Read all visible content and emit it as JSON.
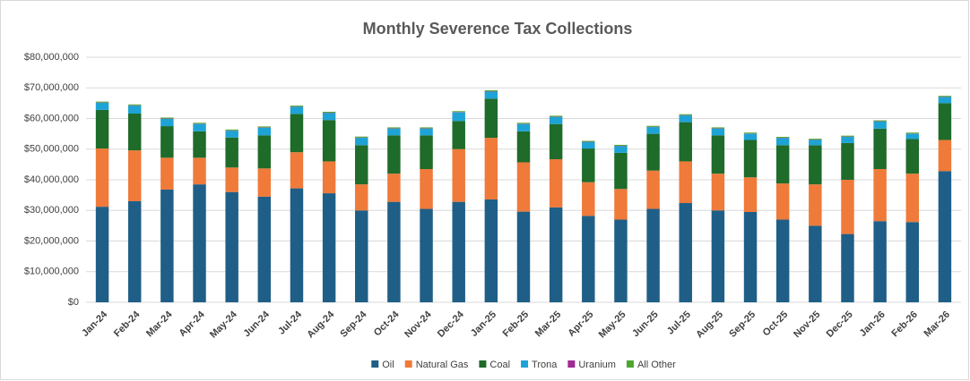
{
  "chart_data": {
    "type": "stacked_bar",
    "title": "Monthly Severence Tax Collections",
    "categories": [
      "Jan-24",
      "Feb-24",
      "Mar-24",
      "Apr-24",
      "May-24",
      "Jun-24",
      "Jul-24",
      "Aug-24",
      "Sep-24",
      "Oct-24",
      "Nov-24",
      "Dec-24",
      "Jan-25",
      "Feb-25",
      "Mar-25",
      "Apr-25",
      "May-25",
      "Jun-25",
      "Jul-25",
      "Aug-25",
      "Sep-25",
      "Oct-25",
      "Nov-25",
      "Dec-25",
      "Jan-26",
      "Feb-26",
      "Mar-26"
    ],
    "series": [
      {
        "name": "Oil",
        "color": "#1f5f87",
        "values": [
          31200000,
          33000000,
          36800000,
          38500000,
          36000000,
          34500000,
          37200000,
          35600000,
          30000000,
          32800000,
          30500000,
          32800000,
          33600000,
          29600000,
          31000000,
          28200000,
          27000000,
          30500000,
          32400000,
          30000000,
          29500000,
          27000000,
          25000000,
          22300000,
          26500000,
          26200000,
          42800000
        ]
      },
      {
        "name": "Natural Gas",
        "color": "#ef7a3a",
        "values": [
          19000000,
          16600000,
          10400000,
          8700000,
          8000000,
          9200000,
          11800000,
          10400000,
          8500000,
          9200000,
          13000000,
          17200000,
          20100000,
          16100000,
          15700000,
          11000000,
          10000000,
          12500000,
          13600000,
          12000000,
          11300000,
          11800000,
          13500000,
          17700000,
          17000000,
          15800000,
          10200000
        ]
      },
      {
        "name": "Coal",
        "color": "#1e6b2a",
        "values": [
          12600000,
          12000000,
          10300000,
          8600000,
          9800000,
          10800000,
          12500000,
          13500000,
          12800000,
          12500000,
          11000000,
          9200000,
          12800000,
          10100000,
          11500000,
          11000000,
          11800000,
          12000000,
          12800000,
          12500000,
          12200000,
          12500000,
          12800000,
          12000000,
          13200000,
          11300000,
          12000000
        ]
      },
      {
        "name": "Trona",
        "color": "#1ea3d6",
        "values": [
          2300000,
          2600000,
          2400000,
          2400000,
          2200000,
          2500000,
          2300000,
          2300000,
          2400000,
          2200000,
          2200000,
          2800000,
          2300000,
          2400000,
          2300000,
          2100000,
          2200000,
          2200000,
          2200000,
          2200000,
          2000000,
          2300000,
          1700000,
          2000000,
          2300000,
          1700000,
          2000000
        ]
      },
      {
        "name": "Uranium",
        "color": "#a02b93",
        "values": [
          100000,
          100000,
          100000,
          100000,
          100000,
          100000,
          100000,
          100000,
          100000,
          100000,
          100000,
          100000,
          100000,
          100000,
          100000,
          100000,
          100000,
          100000,
          100000,
          100000,
          100000,
          100000,
          100000,
          100000,
          100000,
          100000,
          100000
        ]
      },
      {
        "name": "All Other",
        "color": "#4ea72e",
        "values": [
          300000,
          300000,
          300000,
          300000,
          300000,
          300000,
          300000,
          300000,
          300000,
          300000,
          300000,
          300000,
          300000,
          300000,
          300000,
          300000,
          300000,
          300000,
          300000,
          300000,
          300000,
          300000,
          300000,
          300000,
          300000,
          300000,
          300000
        ]
      }
    ],
    "ylim": [
      0,
      80000000
    ],
    "yticks": [
      {
        "value": 0,
        "label": "$0"
      },
      {
        "value": 10000000,
        "label": "$10,000,000"
      },
      {
        "value": 20000000,
        "label": "$20,000,000"
      },
      {
        "value": 30000000,
        "label": "$30,000,000"
      },
      {
        "value": 40000000,
        "label": "$40,000,000"
      },
      {
        "value": 50000000,
        "label": "$50,000,000"
      },
      {
        "value": 60000000,
        "label": "$60,000,000"
      },
      {
        "value": 70000000,
        "label": "$70,000,000"
      },
      {
        "value": 80000000,
        "label": "$80,000,000"
      }
    ],
    "grid": true,
    "legend": "bottom"
  }
}
